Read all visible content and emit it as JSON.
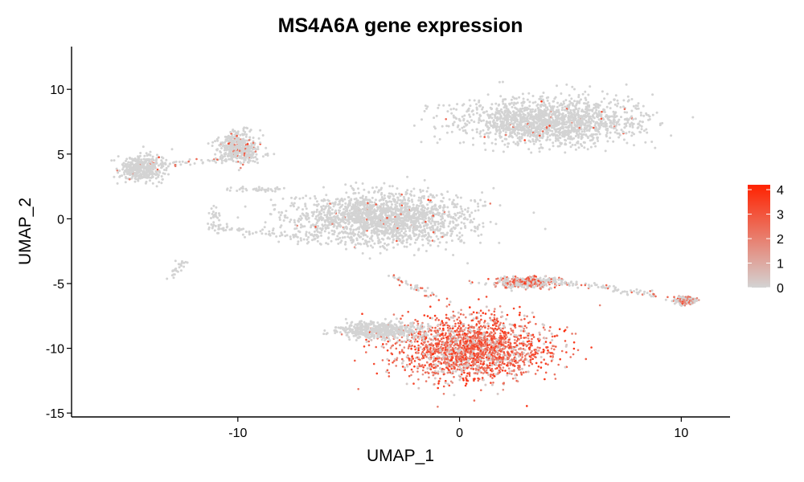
{
  "chart_data": {
    "type": "scatter",
    "title": "MS4A6A gene expression",
    "xlabel": "UMAP_1",
    "ylabel": "UMAP_2",
    "xlim": [
      -17.5,
      12.2
    ],
    "ylim": [
      -15.3,
      13.3
    ],
    "x_ticks": [
      -10,
      0,
      10
    ],
    "y_ticks": [
      -15,
      -10,
      -5,
      0,
      5,
      10
    ],
    "x_tick_labels": [
      "-10",
      "0",
      "10"
    ],
    "y_tick_labels": [
      "-15",
      "-10",
      "-5",
      "0",
      "5",
      "10"
    ],
    "grid": false,
    "legend": {
      "placement": "right",
      "type": "colorbar",
      "min": 0,
      "max": 4.2,
      "ticks": [
        0,
        1,
        2,
        3,
        4
      ],
      "tick_labels": [
        "0",
        "1",
        "2",
        "3",
        "4"
      ],
      "color_low": "#D3D3D3",
      "color_high": "#FF2200"
    },
    "clusters": [
      {
        "region": "large upper cluster",
        "x_center": 4.0,
        "y_center": 7.5,
        "x_spread": 3.5,
        "y_spread": 1.6,
        "expression": "low"
      },
      {
        "region": "central left cluster",
        "x_center": -3.5,
        "y_center": 0.0,
        "x_spread": 3.5,
        "y_spread": 1.8,
        "expression": "low"
      },
      {
        "region": "left small cluster",
        "x_center": -14.3,
        "y_center": 3.9,
        "x_spread": 0.9,
        "y_spread": 0.9,
        "expression": "low"
      },
      {
        "region": "upper-left cluster",
        "x_center": -10.0,
        "y_center": 5.5,
        "x_spread": 0.8,
        "y_spread": 1.1,
        "expression": "low-moderate"
      },
      {
        "region": "lower main cluster",
        "x_center": 0.5,
        "y_center": -10.0,
        "x_spread": 3.2,
        "y_spread": 2.2,
        "expression": "high"
      },
      {
        "region": "lower left arm",
        "x_center": -3.5,
        "y_center": -8.6,
        "x_spread": 1.8,
        "y_spread": 0.6,
        "expression": "low"
      },
      {
        "region": "right streak",
        "x_center": 3.0,
        "y_center": -4.9,
        "x_spread": 1.4,
        "y_spread": 0.4,
        "expression": "moderate"
      },
      {
        "region": "far-right small cluster",
        "x_center": 10.2,
        "y_center": -6.3,
        "x_spread": 0.4,
        "y_spread": 0.25,
        "expression": "moderate"
      }
    ]
  }
}
